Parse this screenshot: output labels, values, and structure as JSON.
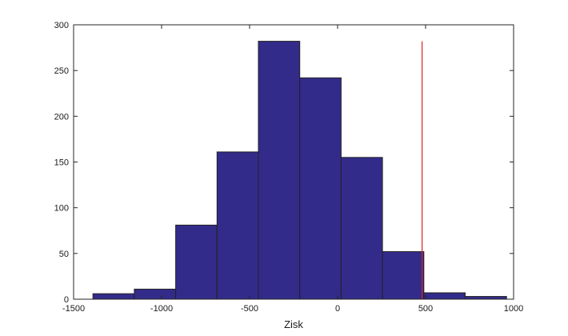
{
  "chart_data": {
    "type": "bar",
    "subtype": "histogram",
    "title": "",
    "xlabel": "Zisk",
    "ylabel": "",
    "xlim": [
      -1500,
      1000
    ],
    "ylim": [
      0,
      300
    ],
    "xticks": [
      -1500,
      -1000,
      -500,
      0,
      500,
      1000
    ],
    "yticks": [
      0,
      50,
      100,
      150,
      200,
      250,
      300
    ],
    "xtick_labels": [
      "-1500",
      "-1000",
      "-500",
      "0",
      "500",
      "1000"
    ],
    "ytick_labels": [
      "0",
      "50",
      "100",
      "150",
      "200",
      "250",
      "300"
    ],
    "grid": false,
    "legend": "none",
    "bins": [
      {
        "x0": -1390,
        "x1": -1155,
        "count": 6
      },
      {
        "x0": -1155,
        "x1": -920,
        "count": 11
      },
      {
        "x0": -920,
        "x1": -685,
        "count": 81
      },
      {
        "x0": -685,
        "x1": -450,
        "count": 161
      },
      {
        "x0": -450,
        "x1": -215,
        "count": 282
      },
      {
        "x0": -215,
        "x1": 20,
        "count": 242
      },
      {
        "x0": 20,
        "x1": 255,
        "count": 155
      },
      {
        "x0": 255,
        "x1": 490,
        "count": 52
      },
      {
        "x0": 490,
        "x1": 725,
        "count": 7
      },
      {
        "x0": 725,
        "x1": 960,
        "count": 3
      }
    ],
    "reference_line": {
      "x": 480,
      "y_top": 282
    },
    "colors": {
      "bar_fill": "#332b8a",
      "bar_edge": "#222222",
      "reference_line": "#e02020",
      "axis": "#262626"
    }
  }
}
